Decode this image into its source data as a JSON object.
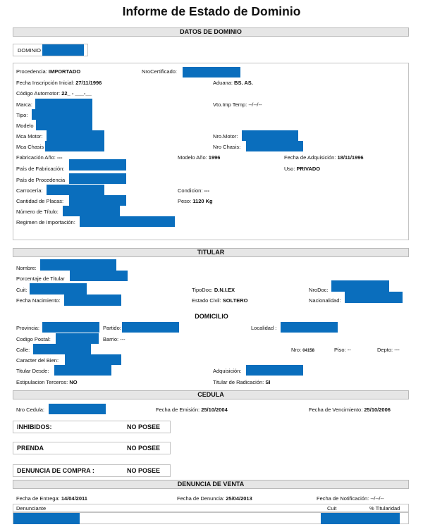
{
  "title": "Informe de Estado de Dominio",
  "sections": {
    "datos_dominio": "DATOS DE DOMINIO",
    "titular": "TITULAR",
    "domicilio": "DOMICILIO",
    "cedula": "CEDULA",
    "denuncia_venta": "DENUNCIA DE VENTA"
  },
  "dominio_label": "DOMINIO",
  "datos": {
    "procedencia_label": "Procedencia:",
    "procedencia_value": "IMPORTADO",
    "nro_certificado_label": "NroCertificado:",
    "fecha_inscripcion_label": "Fecha Inscripción Inicial:",
    "fecha_inscripcion_value": "27/11/1996",
    "aduana_label": "Aduana:",
    "aduana_value": "BS. AS.",
    "codigo_automotor_label": "Código Automotor:",
    "codigo_automotor_value": "22_ - ___-__",
    "marca_label": "Marca:",
    "vto_imp_label": "Vto.Imp Temp:",
    "vto_imp_value": "--/--/--",
    "tipo_label": "Tipo:",
    "modelo_label": "Modelo",
    "mca_motor_label": "Mca Motor:",
    "nro_motor_label": "Nro.Motor:",
    "mca_chasis_label": "Mca Chasis",
    "nro_chasis_label": "Nro Chasis:",
    "fabricacion_anio_label": "Fabricación Año:",
    "fabricacion_anio_value": "---",
    "modelo_anio_label": "Modelo Año:",
    "modelo_anio_value": "1996",
    "fecha_adquisicion_label": "Fecha de Adquisición:",
    "fecha_adquisicion_value": "18/11/1996",
    "pais_fabricacion_label": "País de Fabricación:",
    "uso_label": "Uso:",
    "uso_value": "PRIVADO",
    "pais_procedencia_label": "País de Procedencia",
    "carroceria_label": "Carrocería:",
    "condicion_label": "Condicion:",
    "condicion_value": "---",
    "cantidad_placas_label": "Cantidad de Placas:",
    "peso_label": "Peso:",
    "peso_value": "1120 Kg",
    "numero_titulo_label": "Número de Título:",
    "regimen_label": "Regimen de Importación:"
  },
  "titular": {
    "nombre_label": "Nombre:",
    "porcentaje_label": "Porcentaje de Titular",
    "cuit_label": "Cuit:",
    "tipodoc_label": "TipoDoc:",
    "tipodoc_value": "D.N.I.EX",
    "nrodoc_label": "NroDoc:",
    "fecha_nacimiento_label": "Fecha Nacimiento:",
    "estado_civil_label": "Estado Civil:",
    "estado_civil_value": "SOLTERO",
    "nacionalidad_label": "Nacionalidad:"
  },
  "domicilio": {
    "provincia_label": "Provincia:",
    "partido_label": "Partido:",
    "localidad_label": "Localidad :",
    "codigo_postal_label": "Codigo Postal:",
    "barrio_label": "Barrio:",
    "barrio_value": "---",
    "calle_label": "Calle:",
    "nro_label": "Nro:",
    "nro_value": "04158",
    "piso_label": "Piso:",
    "piso_value": "--",
    "depto_label": "Depto:",
    "depto_value": "---",
    "caracter_label": "Caracter del Bien:",
    "titular_desde_label": "Titular Desde:",
    "adquisicion_label": "Adquisición:",
    "estipulacion_label": "Estipulacion Terceros:",
    "estipulacion_value": "NO",
    "titular_radicacion_label": "Titular de Radicación:",
    "titular_radicacion_value": "SI"
  },
  "cedula": {
    "nro_cedula_label": "Nro Cedula:",
    "fecha_emision_label": "Fecha de Emisión:",
    "fecha_emision_value": "25/10/2004",
    "fecha_vencimiento_label": "Fecha de Vencimiento:",
    "fecha_vencimiento_value": "25/10/2006"
  },
  "status": {
    "inhibidos_label": "INHIBIDOS:",
    "inhibidos_value": "NO POSEE",
    "prenda_label": "PRENDA",
    "prenda_value": "NO POSEE",
    "denuncia_compra_label": "DENUNCIA DE COMPRA :",
    "denuncia_compra_value": "NO POSEE"
  },
  "denuncia_venta": {
    "fecha_entrega_label": "Fecha de Entrega:",
    "fecha_entrega_value": "14/04/2011",
    "fecha_denuncia_label": "Fecha de Denuncia:",
    "fecha_denuncia_value": "25/04/2013",
    "fecha_notificacion_label": "Fecha de Notificación:",
    "fecha_notificacion_value": "--/--/--",
    "col_denunciante": "Denunciante",
    "col_cuit": "Cuit",
    "col_titularidad": "% Titularidad"
  },
  "redaction_color": "#0a6ebd"
}
